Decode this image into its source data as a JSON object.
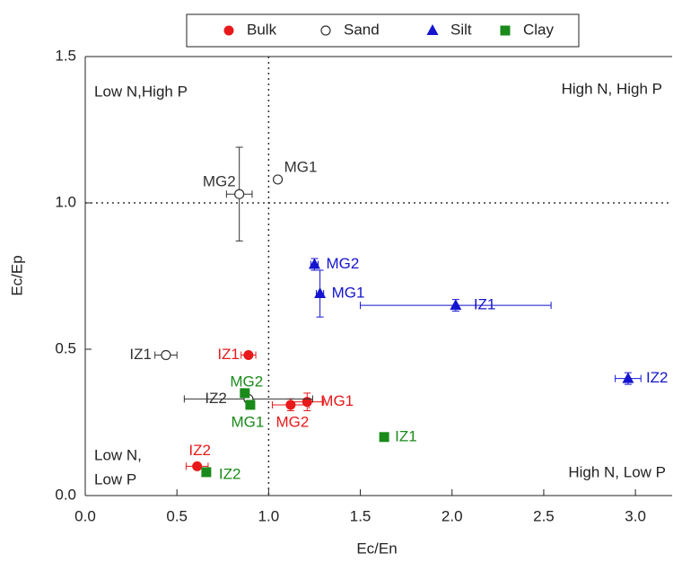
{
  "chart_data": {
    "type": "scatter",
    "x_label": "Ec/En",
    "y_label": "Ec/Ep",
    "xlim": [
      0,
      3.2
    ],
    "ylim": [
      0,
      1.5
    ],
    "xticks": [
      {
        "value": 0,
        "label": "0.0"
      },
      {
        "value": 0.5,
        "label": "0.5"
      },
      {
        "value": 1,
        "label": "1.0"
      },
      {
        "value": 1.5,
        "label": "1.5"
      },
      {
        "value": 2,
        "label": "2.0"
      },
      {
        "value": 2.5,
        "label": "2.5"
      },
      {
        "value": 3,
        "label": "3.0"
      }
    ],
    "yticks": [
      {
        "value": 0,
        "label": "0.0"
      },
      {
        "value": 0.5,
        "label": "0.5"
      },
      {
        "value": 1,
        "label": "1.0"
      },
      {
        "value": 1.5,
        "label": "1.5"
      }
    ],
    "reference_lines": {
      "x": 1,
      "y": 1
    },
    "quadrant_labels": {
      "top_left": "Low N,High P",
      "top_right": "High N, High P",
      "bottom_left": [
        "Low N,",
        "Low P"
      ],
      "bottom_right": "High N, Low P"
    },
    "series": [
      {
        "name": "Bulk",
        "color": "#e8191b",
        "marker": "circle",
        "labels": [
          "IZ1",
          "IZ2",
          "MG1",
          "MG2"
        ],
        "x": [
          0.89,
          0.61,
          1.21,
          1.12
        ],
        "values": [
          0.48,
          0.1,
          0.32,
          0.31
        ],
        "xerr": [
          0.04,
          0.06,
          0.09,
          0.1
        ],
        "yerr": [
          0.01,
          0.01,
          0.03,
          0.02
        ]
      },
      {
        "name": "Sand",
        "color": "#333333",
        "marker": "open-circle",
        "labels": [
          "MG1",
          "MG2",
          "IZ1",
          "IZ2"
        ],
        "x": [
          1.05,
          0.84,
          0.44,
          0.89
        ],
        "values": [
          1.08,
          1.03,
          0.48,
          0.33
        ],
        "xerr": [
          0.01,
          0.07,
          0.06,
          0.35
        ],
        "yerr": [
          0.01,
          0.16,
          0.01,
          0.01
        ]
      },
      {
        "name": "Silt",
        "color": "#1515d0",
        "marker": "triangle",
        "labels": [
          "MG2",
          "MG1",
          "IZ1",
          "IZ2"
        ],
        "x": [
          1.25,
          1.28,
          2.02,
          2.96
        ],
        "values": [
          0.79,
          0.69,
          0.65,
          0.4
        ],
        "xerr": [
          0.02,
          0.02,
          0.52,
          0.07
        ],
        "yerr": [
          0.02,
          0.08,
          0.02,
          0.02
        ]
      },
      {
        "name": "Clay",
        "color": "#1a8a1a",
        "marker": "square",
        "labels": [
          "MG2",
          "MG1",
          "IZ1",
          "IZ2"
        ],
        "x": [
          0.87,
          0.9,
          1.63,
          0.66
        ],
        "values": [
          0.35,
          0.31,
          0.2,
          0.08
        ],
        "xerr": [
          0.01,
          0.01,
          0.01,
          0.01
        ],
        "yerr": [
          0.01,
          0.01,
          0.01,
          0.01
        ]
      }
    ]
  }
}
